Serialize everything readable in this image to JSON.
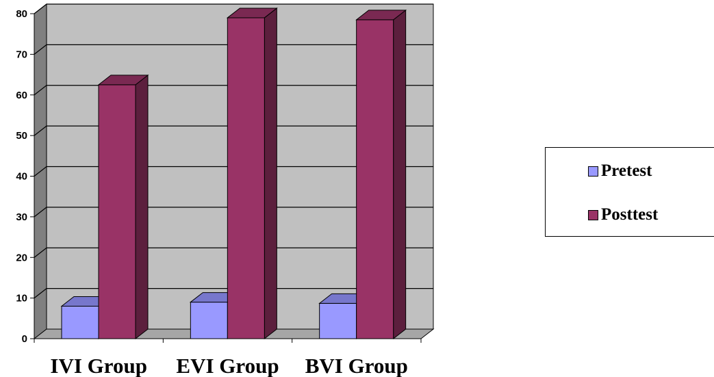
{
  "chart_data": {
    "type": "bar",
    "categories": [
      "IVI Group",
      "EVI Group",
      "BVI Group"
    ],
    "series": [
      {
        "name": "Pretest",
        "values": [
          8,
          9,
          8.7
        ]
      },
      {
        "name": "Posttest",
        "values": [
          62.5,
          79,
          78.5
        ]
      }
    ],
    "ylim": [
      0,
      80
    ],
    "yticks": [
      "0",
      "10",
      "20",
      "30",
      "40",
      "50",
      "60",
      "70",
      "80"
    ],
    "grid": true,
    "legend_position": "right",
    "style": "3d-clustered-column"
  },
  "colors": {
    "pretest_front": "#9999ff",
    "pretest_top": "#7777cc",
    "pretest_side": "#5c5c99",
    "posttest_front": "#993366",
    "posttest_top": "#7a2952",
    "posttest_side": "#5c1f3d",
    "wall": "#c0c0c0",
    "side_wall": "#808080",
    "floor": "#a6a6a6"
  }
}
